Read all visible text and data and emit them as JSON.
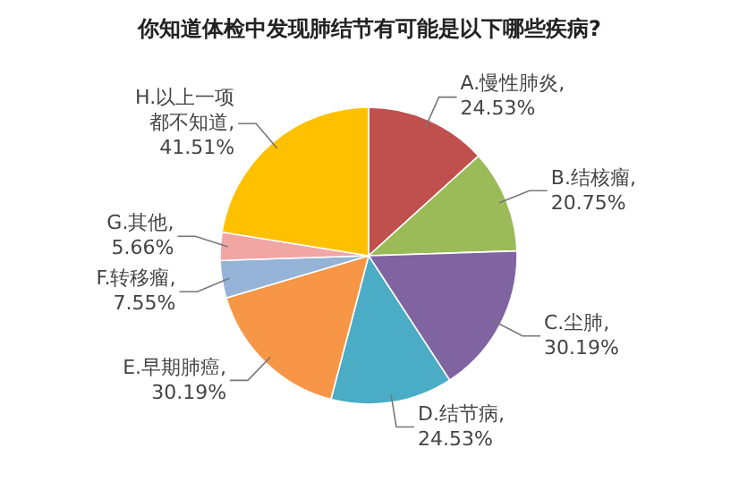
{
  "chart_data": {
    "type": "pie",
    "title": "你知道体检中发现肺结节有可能是以下哪些疾病?",
    "categories": [
      "A.慢性肺炎",
      "B.结核瘤",
      "C.尘肺",
      "D.结节病",
      "E.早期肺癌",
      "F.转移瘤",
      "G.其他",
      "H.以上一项都不知道"
    ],
    "values": [
      24.53,
      20.75,
      30.19,
      24.53,
      30.19,
      7.55,
      5.66,
      41.51
    ],
    "value_labels": [
      ", 24.53%",
      ", 20.75%",
      ", 30.19%",
      ", 24.53%",
      ", 30.19%",
      ", 7.55%",
      ", 5.66%",
      ", 41.51%"
    ],
    "colors": [
      "#c0504d",
      "#9bbb59",
      "#8064a2",
      "#4bacc6",
      "#f79646",
      "#95b3d7",
      "#f2a5a5",
      "#ffc000"
    ]
  }
}
